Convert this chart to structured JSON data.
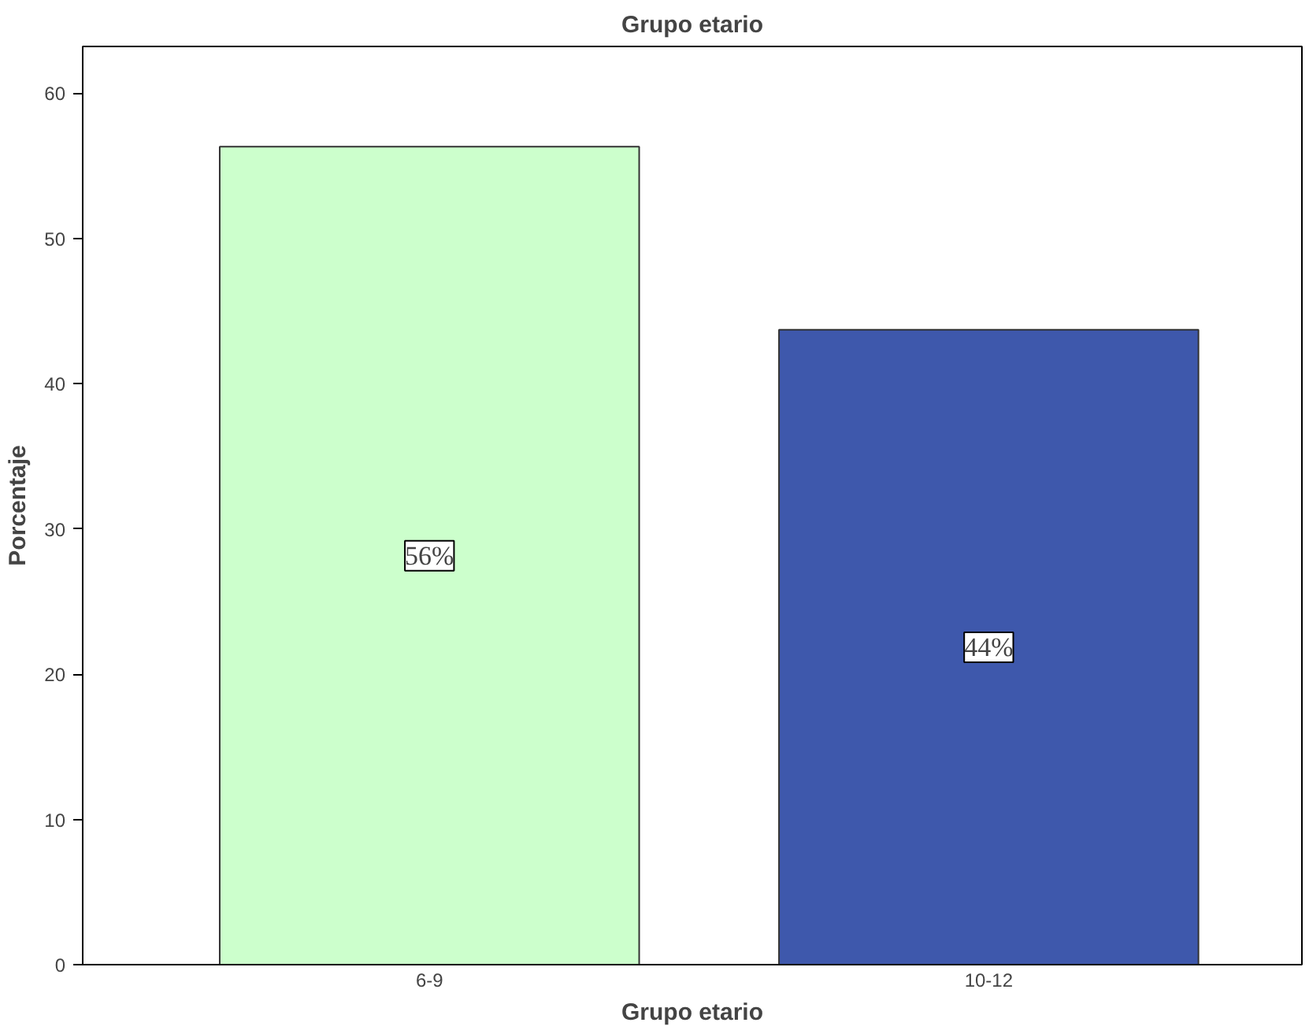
{
  "chart_data": {
    "type": "bar",
    "title": "Grupo etario",
    "xlabel": "Grupo etario",
    "ylabel": "Porcentaje",
    "categories": [
      "6-9",
      "10-12"
    ],
    "values": [
      56.3,
      43.7
    ],
    "colors": [
      "#ccffcc",
      "#3e58ac"
    ],
    "value_labels": [
      "56%",
      "44%"
    ],
    "ylim": [
      0,
      63.2
    ],
    "yticks": [
      0,
      10,
      20,
      30,
      40,
      50,
      60
    ],
    "grid": false
  }
}
